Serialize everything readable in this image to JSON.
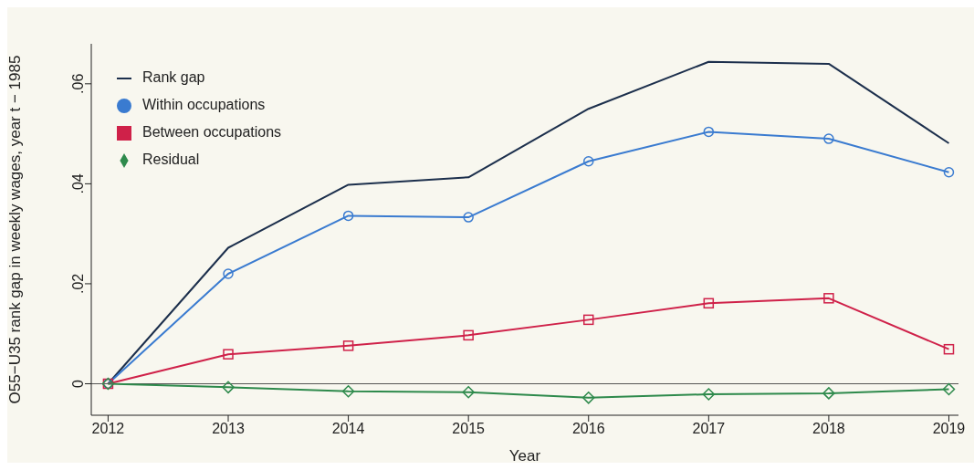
{
  "chart_data": {
    "type": "line",
    "xlabel": "Year",
    "ylabel": "O55−U35 rank gap in weekly wages, year t − 1985",
    "x": [
      2012,
      2013,
      2014,
      2015,
      2016,
      2017,
      2018,
      2019
    ],
    "xlim": [
      2011.86,
      2019.08
    ],
    "xticks": [
      2012,
      2013,
      2014,
      2015,
      2016,
      2017,
      2018,
      2019
    ],
    "ylim": [
      -0.0063,
      0.068
    ],
    "yticks": [
      {
        "value": 0,
        "label": "0"
      },
      {
        "value": 0.02,
        "label": ".02"
      },
      {
        "value": 0.04,
        "label": ".04"
      },
      {
        "value": 0.06,
        "label": ".06"
      }
    ],
    "grid": false,
    "legend": "top left",
    "ref_lines": [
      {
        "axis": "y",
        "value": 0,
        "color": "#555555"
      }
    ],
    "series": [
      {
        "name": "Rank gap",
        "color": "#1c2f4c",
        "marker": "none",
        "values": [
          0,
          0.0272,
          0.0398,
          0.0413,
          0.055,
          0.0644,
          0.064,
          0.0481
        ]
      },
      {
        "name": "Within occupations",
        "color": "#3a7bd0",
        "marker": "circle",
        "values": [
          0,
          0.022,
          0.0336,
          0.0333,
          0.0445,
          0.0504,
          0.049,
          0.0423
        ]
      },
      {
        "name": "Between occupations",
        "color": "#cf2149",
        "marker": "square",
        "values": [
          0,
          0.0059,
          0.0076,
          0.0097,
          0.0128,
          0.0161,
          0.0171,
          0.0069
        ]
      },
      {
        "name": "Residual",
        "color": "#2e8a4c",
        "marker": "diamond",
        "values": [
          0,
          -0.0007,
          -0.0015,
          -0.0017,
          -0.0028,
          -0.0021,
          -0.0019,
          -0.0011
        ]
      }
    ]
  }
}
